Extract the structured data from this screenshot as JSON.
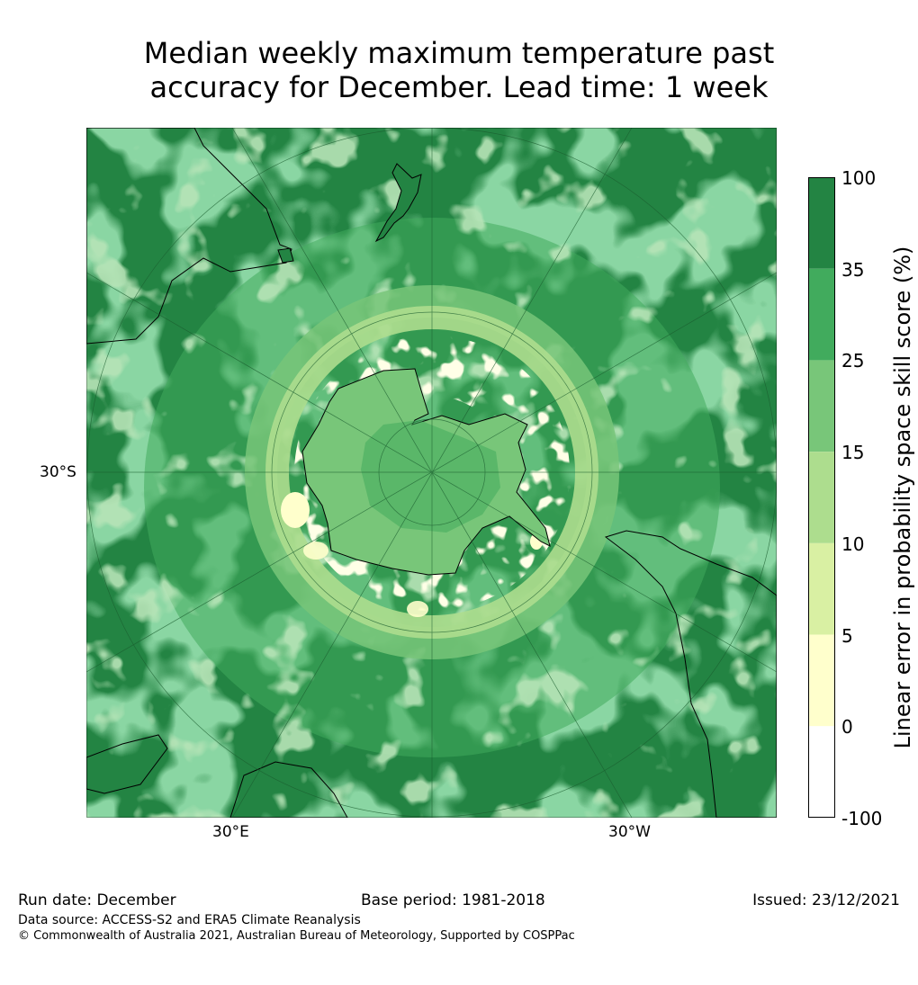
{
  "title": {
    "line1": "Median weekly maximum temperature past",
    "line2": "accuracy for December. Lead time: 1 week"
  },
  "map": {
    "lat_label": "30°S",
    "lon_labels": [
      "30°E",
      "30°W"
    ],
    "projection": "south-polar-stereographic",
    "landmasses": [
      "Antarctica",
      "Australia",
      "New Zealand",
      "South America",
      "Africa"
    ]
  },
  "colorbar": {
    "title": "Linear error in probability space skill score (%)",
    "tick_labels": [
      "100",
      "35",
      "25",
      "15",
      "10",
      "5",
      "0",
      "-100"
    ],
    "bins": [
      {
        "from": -100,
        "to": 0,
        "color": "#ffffff"
      },
      {
        "from": 0,
        "to": 5,
        "color": "#ffffcc"
      },
      {
        "from": 5,
        "to": 10,
        "color": "#d9f0a3"
      },
      {
        "from": 10,
        "to": 15,
        "color": "#addd8e"
      },
      {
        "from": 15,
        "to": 25,
        "color": "#78c679"
      },
      {
        "from": 25,
        "to": 35,
        "color": "#41ab5d"
      },
      {
        "from": 35,
        "to": 100,
        "color": "#238443"
      }
    ]
  },
  "footer": {
    "run_date": "Run date: December",
    "base_period": "Base period: 1981-2018",
    "issued": "Issued: 23/12/2021",
    "data_source": "Data source: ACCESS-S2 and ERA5 Climate Reanalysis",
    "copyright": "© Commonwealth of Australia 2021, Australian Bureau of Meteorology, Supported by COSPPac"
  }
}
